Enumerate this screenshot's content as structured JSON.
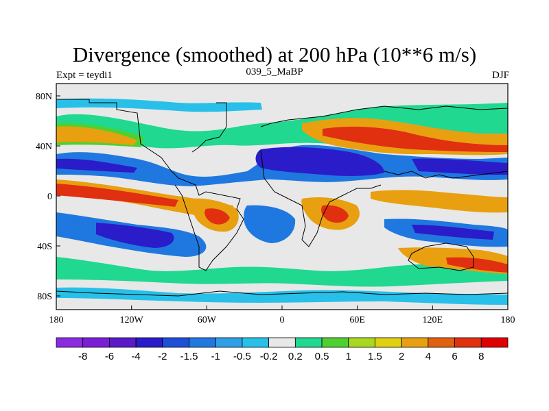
{
  "title": "Divergence (smoothed) at 200 hPa (10**6 m/s)",
  "subtitle_left": "Expt = teydi1",
  "subtitle_center": "039_5_MaBP",
  "subtitle_right": "DJF",
  "y_ticks": [
    "80N",
    "40N",
    "0",
    "40S",
    "80S"
  ],
  "x_ticks": [
    "180",
    "120W",
    "60W",
    "0",
    "60E",
    "120E",
    "180"
  ],
  "colorbar": {
    "labels": [
      "-8",
      "-6",
      "-4",
      "-2",
      "-1.5",
      "-1",
      "-0.5",
      "-0.2",
      "0.2",
      "0.5",
      "1",
      "1.5",
      "2",
      "4",
      "6",
      "8"
    ],
    "colors": [
      "#8a2be2",
      "#7a1fd6",
      "#5a1ac8",
      "#2a1cc8",
      "#1f4fd8",
      "#1f78e0",
      "#2fa0e8",
      "#28c0e8",
      "#e8e8e8",
      "#20d890",
      "#50d030",
      "#a8d820",
      "#e0d010",
      "#e8a010",
      "#e06010",
      "#e03010",
      "#e00000"
    ]
  },
  "palette": {
    "neutral": "#e8e8e8",
    "div_weak": "#20d890",
    "div_mod": "#50d030",
    "div_strong": "#e8a010",
    "div_max": "#e03010",
    "conv_weak": "#28c0e8",
    "conv_mod": "#1f78e0",
    "conv_strong": "#2a1cc8"
  }
}
